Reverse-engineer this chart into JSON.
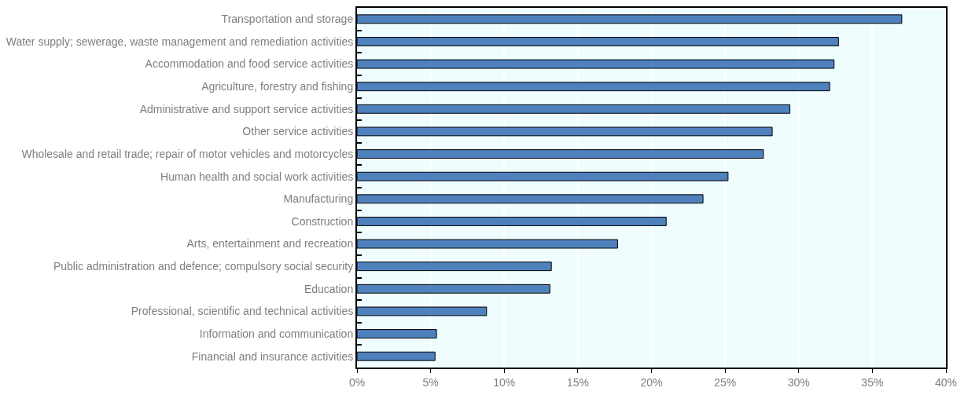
{
  "chart_data": {
    "type": "bar",
    "orientation": "horizontal",
    "categories": [
      "Transportation and storage",
      "Water supply; sewerage, waste management and remediation activities",
      "Accommodation and food service activities",
      "Agriculture, forestry and fishing",
      "Administrative and support service activities",
      "Other service activities",
      "Wholesale and retail trade; repair of motor vehicles and motorcycles",
      "Human health and social work activities",
      "Manufacturing",
      "Construction",
      "Arts, entertainment and recreation",
      "Public administration and defence; compulsory social security",
      "Education",
      "Professional, scientific and technical activities",
      "Information and communication",
      "Financial and insurance activities"
    ],
    "values": [
      37.0,
      32.7,
      32.4,
      32.1,
      29.4,
      28.2,
      27.6,
      25.2,
      23.5,
      21.0,
      17.7,
      13.2,
      13.1,
      8.8,
      5.4,
      5.3
    ],
    "color": "#4f81bd",
    "xlim": [
      0,
      40
    ],
    "xticks": [
      {
        "value": 0,
        "label": "0%"
      },
      {
        "value": 5,
        "label": "5%"
      },
      {
        "value": 10,
        "label": "10%"
      },
      {
        "value": 15,
        "label": "15%"
      },
      {
        "value": 20,
        "label": "20%"
      },
      {
        "value": 25,
        "label": "25%"
      },
      {
        "value": 30,
        "label": "30%"
      },
      {
        "value": 35,
        "label": "35%"
      },
      {
        "value": 40,
        "label": "40%"
      }
    ],
    "grid": "x"
  }
}
